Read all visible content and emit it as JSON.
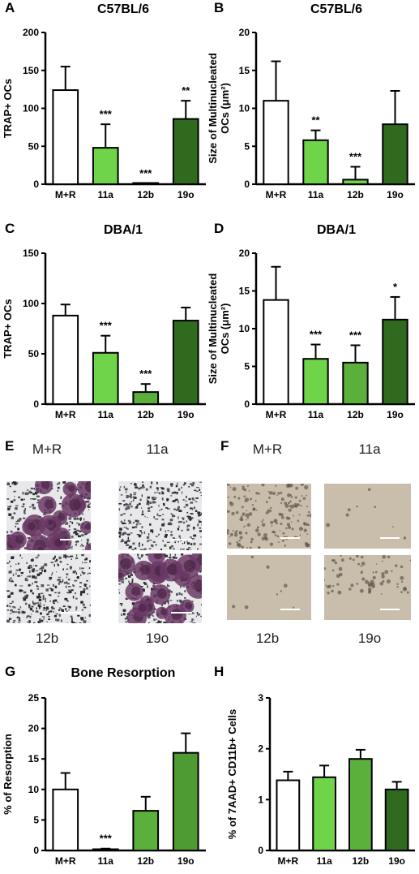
{
  "charts": [
    {
      "label": "A",
      "chart_data": {
        "type": "bar",
        "title": "C57BL/6",
        "ylabel": "TRAP+ OCs",
        "categories": [
          "M+R",
          "11a",
          "12b",
          "19o"
        ],
        "values": [
          124,
          48,
          1,
          86
        ],
        "errors": [
          31,
          31,
          0,
          24
        ],
        "significance": [
          "",
          "***",
          "***",
          "**"
        ],
        "ylim": [
          0,
          200
        ],
        "yticks": [
          "0",
          "50",
          "100",
          "150",
          "200"
        ],
        "colors": [
          "#ffffff",
          "#6fd44a",
          "#6fd44a",
          "#2f6a1f"
        ]
      }
    },
    {
      "label": "B",
      "chart_data": {
        "type": "bar",
        "title": "C57BL/6",
        "ylabel": "Size of Multinucleated OCs (μm²)",
        "categories": [
          "M+R",
          "11a",
          "12b",
          "19o"
        ],
        "values": [
          11,
          5.8,
          0.6,
          7.9
        ],
        "errors": [
          5.2,
          1.3,
          1.7,
          4.4
        ],
        "significance": [
          "",
          "**",
          "***",
          ""
        ],
        "ylim": [
          0,
          20
        ],
        "yticks": [
          "0",
          "5",
          "10",
          "15",
          "20"
        ],
        "colors": [
          "#ffffff",
          "#6fd44a",
          "#6fd44a",
          "#2f6a1f"
        ]
      }
    },
    {
      "label": "C",
      "chart_data": {
        "type": "bar",
        "title": "DBA/1",
        "ylabel": "TRAP+ OCs",
        "categories": [
          "M+R",
          "11a",
          "12b",
          "19o"
        ],
        "values": [
          88,
          51,
          12,
          83
        ],
        "errors": [
          11,
          17,
          8,
          13
        ],
        "significance": [
          "",
          "***",
          "***",
          ""
        ],
        "ylim": [
          0,
          150
        ],
        "yticks": [
          "0",
          "50",
          "100",
          "150"
        ],
        "colors": [
          "#ffffff",
          "#6fd44a",
          "#5ab03a",
          "#2f6a1f"
        ]
      }
    },
    {
      "label": "D",
      "chart_data": {
        "type": "bar",
        "title": "DBA/1",
        "ylabel": "Size of Multinucleated OCs (μm²)",
        "categories": [
          "M+R",
          "11a",
          "12b",
          "19o"
        ],
        "values": [
          13.8,
          6,
          5.5,
          11.2
        ],
        "errors": [
          4.4,
          1.9,
          2.3,
          3
        ],
        "significance": [
          "",
          "***",
          "***",
          "*"
        ],
        "ylim": [
          0,
          20
        ],
        "yticks": [
          "0",
          "5",
          "10",
          "15",
          "20"
        ],
        "colors": [
          "#ffffff",
          "#6fd44a",
          "#5ab03a",
          "#2f6a1f"
        ]
      }
    },
    {
      "label": "G",
      "chart_data": {
        "type": "bar",
        "title": "Bone Resorption",
        "ylabel": "% of Resorption",
        "categories": [
          "M+R",
          "11a",
          "12b",
          "19o"
        ],
        "values": [
          10,
          0.2,
          6.5,
          16
        ],
        "errors": [
          2.7,
          0.1,
          2.3,
          3.2
        ],
        "significance": [
          "",
          "***",
          "",
          ""
        ],
        "ylim": [
          0,
          25
        ],
        "yticks": [
          "0",
          "5",
          "10",
          "15",
          "20",
          "25"
        ],
        "colors": [
          "#ffffff",
          "#6fd44a",
          "#5ab03a",
          "#4e9a33"
        ]
      }
    },
    {
      "label": "H",
      "chart_data": {
        "type": "bar",
        "title": "",
        "ylabel": "% of 7AAD+ CD11b+ Cells",
        "categories": [
          "M+R",
          "11a",
          "12b",
          "19o"
        ],
        "values": [
          1.38,
          1.44,
          1.8,
          1.2
        ],
        "errors": [
          0.17,
          0.23,
          0.18,
          0.15
        ],
        "significance": [
          "",
          "",
          "",
          ""
        ],
        "ylim": [
          0,
          3
        ],
        "yticks": [
          "0",
          "1",
          "2",
          "3"
        ],
        "colors": [
          "#ffffff",
          "#6fd44a",
          "#5ab03a",
          "#2f6a1f"
        ]
      }
    }
  ],
  "images": {
    "E": {
      "label": "E",
      "tiles": [
        {
          "caption": "M+R",
          "style": "trap-purple"
        },
        {
          "caption": "11a",
          "style": "trap-plain"
        },
        {
          "caption": "12b",
          "style": "trap-plain"
        },
        {
          "caption": "19o",
          "style": "trap-purple"
        }
      ]
    },
    "F": {
      "label": "F",
      "tiles": [
        {
          "caption": "M+R",
          "style": "resorption-heavy"
        },
        {
          "caption": "11a",
          "style": "resorption-blank"
        },
        {
          "caption": "12b",
          "style": "resorption-blank"
        },
        {
          "caption": "19o",
          "style": "resorption-light"
        }
      ]
    }
  }
}
